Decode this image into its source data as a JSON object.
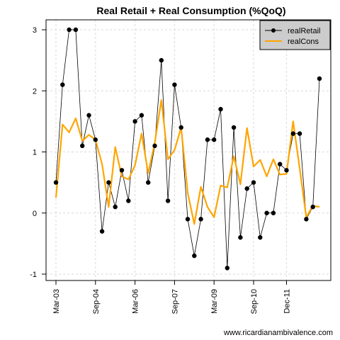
{
  "chart_data": {
    "type": "line",
    "title": "Real Retail + Real Consumption (%QoQ)",
    "xlabel": "",
    "ylabel": "",
    "ylim": [
      -1,
      3
    ],
    "y_ticks": [
      -1,
      0,
      1,
      2,
      3
    ],
    "x_tick_labels": [
      "Mar-03",
      "Sep-04",
      "Mar-06",
      "Sep-07",
      "Mar-09",
      "Sep-10",
      "Dec-11"
    ],
    "x_tick_indices": [
      0,
      6,
      12,
      18,
      24,
      30,
      35
    ],
    "grid": true,
    "legend_position": "top-right",
    "series": [
      {
        "name": "realRetail",
        "color": "#000000",
        "style": "line-with-points",
        "values": [
          0.5,
          2.1,
          3.0,
          3.0,
          1.1,
          1.6,
          1.2,
          -0.3,
          0.5,
          0.1,
          0.7,
          0.2,
          1.5,
          1.6,
          0.5,
          1.1,
          2.5,
          0.2,
          2.1,
          1.4,
          -0.1,
          -0.7,
          -0.1,
          1.2,
          1.2,
          1.7,
          -0.9,
          1.4,
          -0.4,
          0.4,
          0.5,
          -0.4,
          0.0,
          0.0,
          0.8,
          0.7,
          1.3,
          1.3,
          -0.1,
          0.1,
          2.2
        ]
      },
      {
        "name": "realCons",
        "color": "#FFA500",
        "style": "line",
        "values": [
          0.25,
          1.45,
          1.32,
          1.55,
          1.18,
          1.28,
          1.2,
          0.8,
          0.1,
          1.08,
          0.6,
          0.55,
          0.78,
          1.3,
          0.65,
          1.15,
          1.85,
          0.88,
          1.03,
          1.4,
          0.33,
          -0.18,
          0.43,
          0.1,
          -0.07,
          0.45,
          0.42,
          0.93,
          0.47,
          1.39,
          0.76,
          0.87,
          0.6,
          0.88,
          0.63,
          0.64,
          1.5,
          0.73,
          -0.07,
          0.12,
          0.1
        ]
      }
    ]
  },
  "footer": {
    "credit": "www.ricardianambivalence.com"
  }
}
